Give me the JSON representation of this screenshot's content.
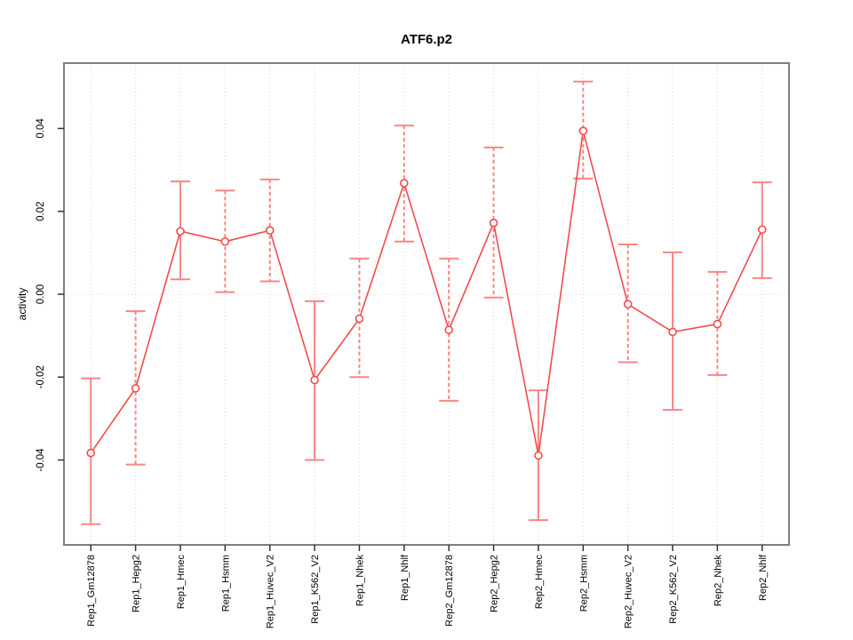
{
  "page": {
    "title": "ATF6.p2"
  },
  "chart_data": {
    "type": "line",
    "title": "ATF6.p2",
    "xlabel": "",
    "ylabel": "activity",
    "legend": "none",
    "grid": "vertical dotted gridlines at each category; dotted horizontal line at y=0",
    "ylim": [
      -0.0605,
      0.0556
    ],
    "yticks": [
      -0.04,
      -0.02,
      0.0,
      0.02,
      0.04
    ],
    "ytick_labels": [
      "-0.04",
      "-0.02",
      "0.00",
      "0.02",
      "0.04"
    ],
    "categories": [
      "Rep1_Gm12878",
      "Rep1_Hepg2",
      "Rep1_Hmec",
      "Rep1_Hsmm",
      "Rep1_Huvec_V2",
      "Rep1_K562_V2",
      "Rep1_Nhek",
      "Rep1_Nhlf",
      "Rep2_Gm12878",
      "Rep2_Hepg2",
      "Rep2_Hmec",
      "Rep2_Hsmm",
      "Rep2_Huvec_V2",
      "Rep2_K562_V2",
      "Rep2_Nhek",
      "Rep2_Nhlf"
    ],
    "series": [
      {
        "name": "activity",
        "marker": "open-circle",
        "values": [
          -0.0383,
          -0.0227,
          0.0152,
          0.0127,
          0.0154,
          -0.0207,
          -0.0059,
          0.0268,
          -0.0086,
          0.0172,
          -0.0389,
          0.0394,
          -0.0024,
          -0.0091,
          -0.0072,
          0.0156
        ],
        "error_lower": [
          -0.0555,
          -0.0411,
          0.0036,
          0.0005,
          0.0031,
          -0.04,
          -0.02,
          0.0127,
          -0.0257,
          -0.0008,
          -0.0545,
          0.0279,
          -0.0164,
          -0.0279,
          -0.0195,
          0.0039
        ],
        "error_upper": [
          -0.0203,
          -0.0041,
          0.0272,
          0.025,
          0.0277,
          -0.0017,
          0.0086,
          0.0407,
          0.0086,
          0.0354,
          -0.0232,
          0.0513,
          0.012,
          0.0101,
          0.0054,
          0.027
        ],
        "error_bar_line_styles": [
          "solid",
          "dashed",
          "solid",
          "dashed",
          "dashed",
          "solid",
          "dashed",
          "dashed",
          "dashed",
          "dashed",
          "solid",
          "dashed",
          "dashed",
          "solid",
          "dashed",
          "solid"
        ]
      }
    ],
    "colors": {
      "line": "#f24c4c",
      "marker": "#f24c4c",
      "error_bar": "#f98585",
      "grid": "#d9d9d9",
      "box": "#7f7f7f",
      "tick": "#333333",
      "text": "#000000"
    }
  }
}
